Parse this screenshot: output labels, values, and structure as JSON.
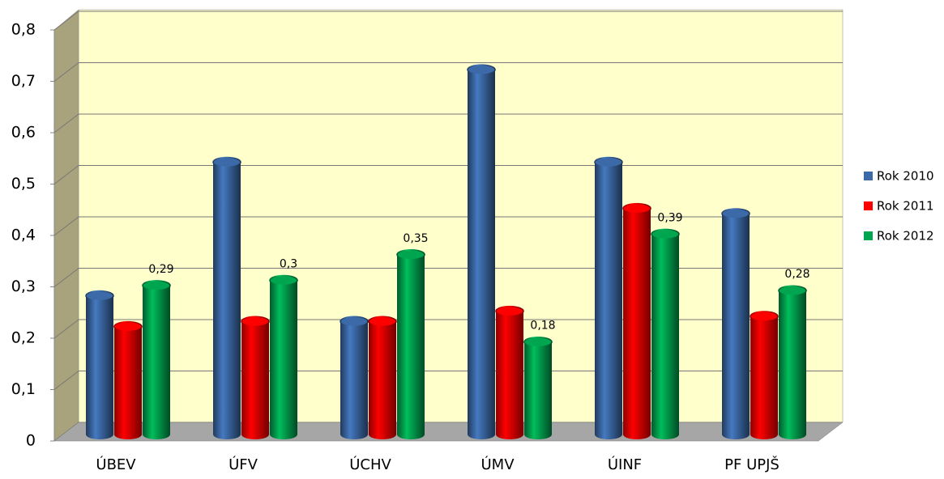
{
  "chart_data": {
    "type": "bar",
    "categories": [
      "ÚBEV",
      "ÚFV",
      "ÚCHV",
      "ÚMV",
      "ÚINF",
      "PF UPJŠ"
    ],
    "series": [
      {
        "name": "Rok 2010",
        "color": "#3c6aa8",
        "values": [
          0.27,
          0.53,
          0.22,
          0.71,
          0.53,
          0.43
        ]
      },
      {
        "name": "Rok 2011",
        "color": "#ff0000",
        "values": [
          0.21,
          0.22,
          0.22,
          0.24,
          0.44,
          0.23
        ]
      },
      {
        "name": "Rok 2012",
        "color": "#00a550",
        "values": [
          0.29,
          0.3,
          0.35,
          0.18,
          0.39,
          0.28
        ],
        "value_labels": [
          "0,29",
          "0,3",
          "0,35",
          "0,18",
          "0,39",
          "0,28"
        ]
      }
    ],
    "ylim": [
      0,
      0.8
    ],
    "yticks": [
      0,
      {
        "value": 0.1,
        "label": "0,1"
      },
      {
        "value": 0.2,
        "label": "0,2"
      },
      {
        "value": 0.3,
        "label": "0,3"
      },
      {
        "value": 0.4,
        "label": "0,4"
      },
      {
        "value": 0.5,
        "label": "0,5"
      },
      {
        "value": 0.6,
        "label": "0,6"
      },
      {
        "value": 0.7,
        "label": "0,7"
      },
      {
        "value": 0.8,
        "label": "0,8"
      }
    ],
    "grid": true,
    "legend": "right"
  }
}
